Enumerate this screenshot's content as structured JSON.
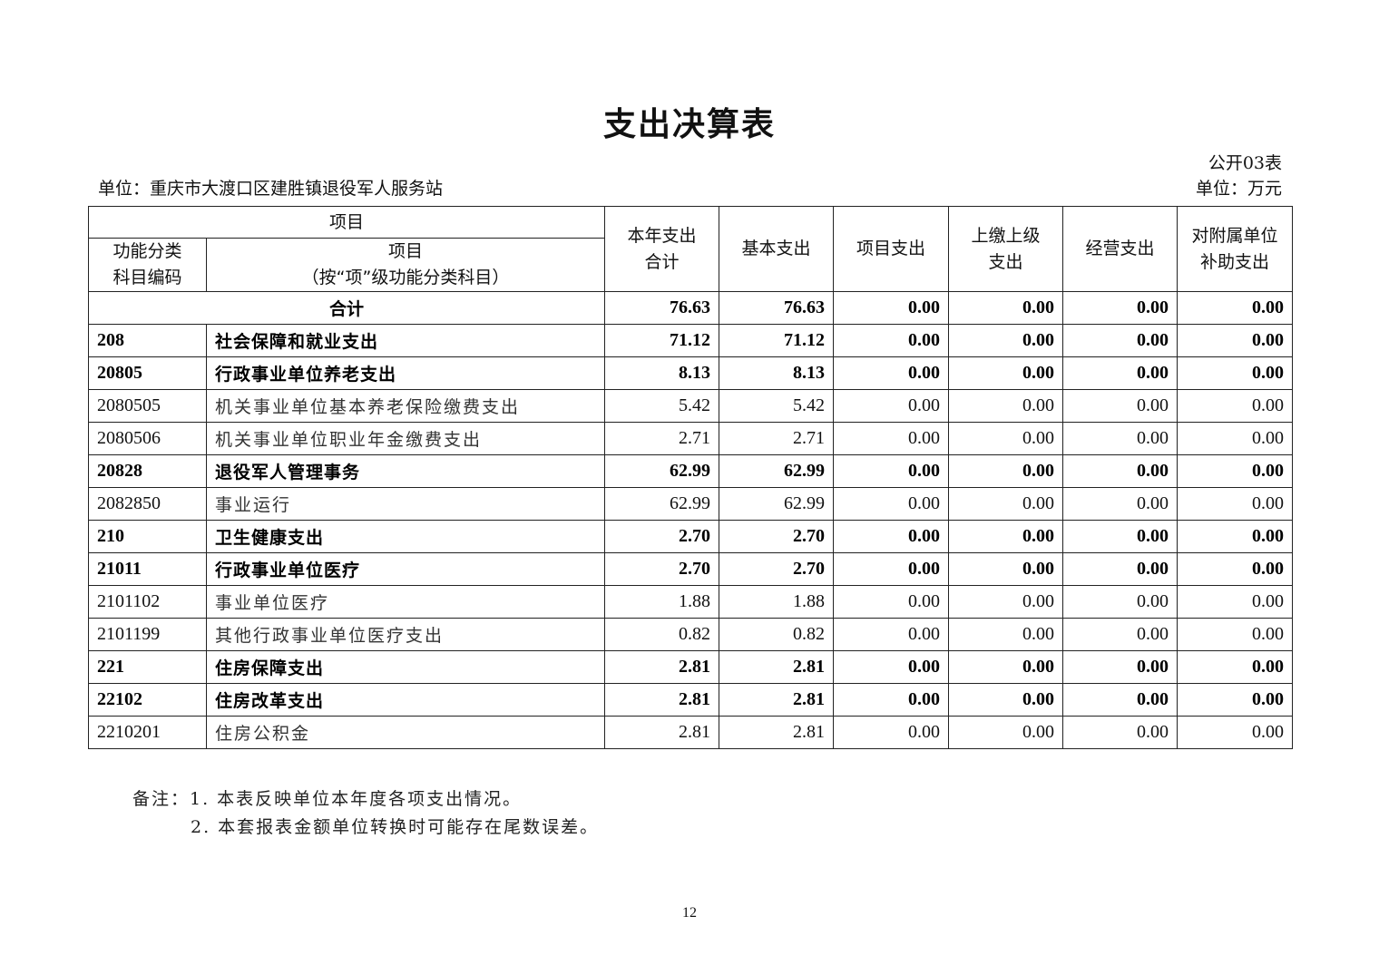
{
  "title": "支出决算表",
  "form_no": "公开03表",
  "unit_org": "单位：重庆市大渡口区建胜镇退役军人服务站",
  "unit_currency": "单位：万元",
  "headers": {
    "item_group": "项目",
    "code": [
      "功能分类",
      "科目编码"
    ],
    "name": [
      "项目",
      "（按“项”级功能分类科目）"
    ],
    "total": [
      "本年支出",
      "合计"
    ],
    "basic": "基本支出",
    "project": "项目支出",
    "upper": [
      "上缴上级",
      "支出"
    ],
    "business": "经营支出",
    "subsidy": [
      "对附属单位",
      "补助支出"
    ]
  },
  "total_row": {
    "label": "合计",
    "values": [
      "76.63",
      "76.63",
      "0.00",
      "0.00",
      "0.00",
      "0.00"
    ]
  },
  "rows": [
    {
      "code": "208",
      "name": "社会保障和就业支出",
      "bold": true,
      "values": [
        "71.12",
        "71.12",
        "0.00",
        "0.00",
        "0.00",
        "0.00"
      ]
    },
    {
      "code": "20805",
      "name": "行政事业单位养老支出",
      "bold": true,
      "values": [
        "8.13",
        "8.13",
        "0.00",
        "0.00",
        "0.00",
        "0.00"
      ]
    },
    {
      "code": "2080505",
      "name": "机关事业单位基本养老保险缴费支出",
      "bold": false,
      "values": [
        "5.42",
        "5.42",
        "0.00",
        "0.00",
        "0.00",
        "0.00"
      ]
    },
    {
      "code": "2080506",
      "name": "机关事业单位职业年金缴费支出",
      "bold": false,
      "values": [
        "2.71",
        "2.71",
        "0.00",
        "0.00",
        "0.00",
        "0.00"
      ]
    },
    {
      "code": "20828",
      "name": "退役军人管理事务",
      "bold": true,
      "values": [
        "62.99",
        "62.99",
        "0.00",
        "0.00",
        "0.00",
        "0.00"
      ]
    },
    {
      "code": "2082850",
      "name": "事业运行",
      "bold": false,
      "values": [
        "62.99",
        "62.99",
        "0.00",
        "0.00",
        "0.00",
        "0.00"
      ]
    },
    {
      "code": "210",
      "name": "卫生健康支出",
      "bold": true,
      "values": [
        "2.70",
        "2.70",
        "0.00",
        "0.00",
        "0.00",
        "0.00"
      ]
    },
    {
      "code": "21011",
      "name": "行政事业单位医疗",
      "bold": true,
      "values": [
        "2.70",
        "2.70",
        "0.00",
        "0.00",
        "0.00",
        "0.00"
      ]
    },
    {
      "code": "2101102",
      "name": "事业单位医疗",
      "bold": false,
      "values": [
        "1.88",
        "1.88",
        "0.00",
        "0.00",
        "0.00",
        "0.00"
      ]
    },
    {
      "code": "2101199",
      "name": "其他行政事业单位医疗支出",
      "bold": false,
      "values": [
        "0.82",
        "0.82",
        "0.00",
        "0.00",
        "0.00",
        "0.00"
      ]
    },
    {
      "code": "221",
      "name": "住房保障支出",
      "bold": true,
      "values": [
        "2.81",
        "2.81",
        "0.00",
        "0.00",
        "0.00",
        "0.00"
      ]
    },
    {
      "code": "22102",
      "name": "住房改革支出",
      "bold": true,
      "values": [
        "2.81",
        "2.81",
        "0.00",
        "0.00",
        "0.00",
        "0.00"
      ]
    },
    {
      "code": "2210201",
      "name": "住房公积金",
      "bold": false,
      "values": [
        "2.81",
        "2.81",
        "0.00",
        "0.00",
        "0.00",
        "0.00"
      ]
    }
  ],
  "notes": [
    "备注：1. 本表反映单位本年度各项支出情况。",
    "2. 本套报表金额单位转换时可能存在尾数误差。"
  ],
  "page_number": "12"
}
